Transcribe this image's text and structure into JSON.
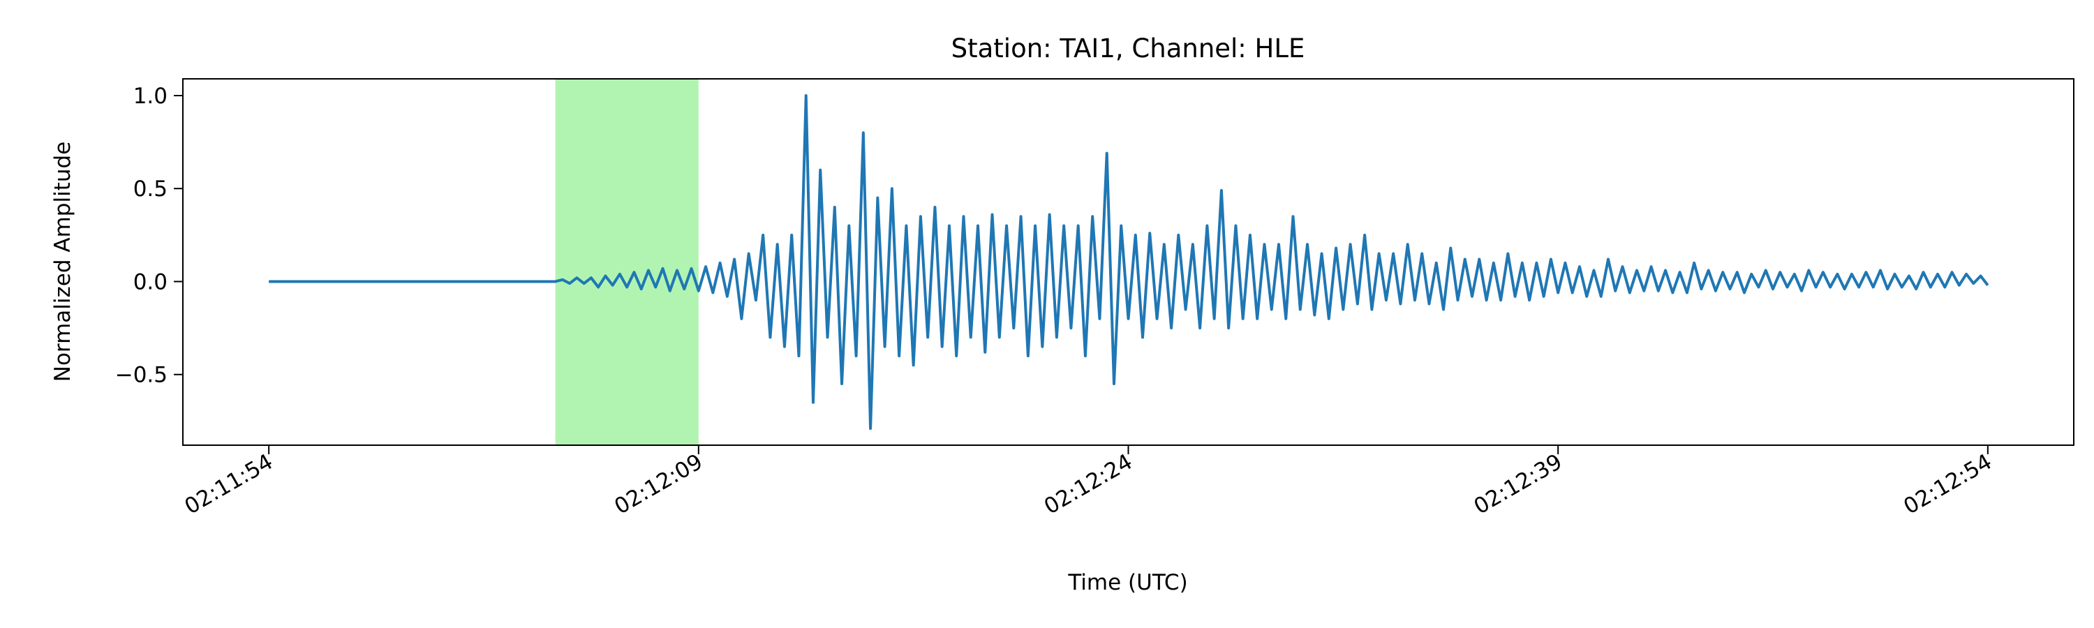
{
  "chart_data": {
    "type": "line",
    "title": "Station: TAI1, Channel: HLE",
    "xlabel": "Time (UTC)",
    "ylabel": "Normalized Amplitude",
    "xlim": [
      7911,
      7977
    ],
    "ylim": [
      -0.88,
      1.09
    ],
    "xticks": [
      {
        "value": 7914,
        "label": "02:11:54"
      },
      {
        "value": 7929,
        "label": "02:12:09"
      },
      {
        "value": 7944,
        "label": "02:12:24"
      },
      {
        "value": 7959,
        "label": "02:12:39"
      },
      {
        "value": 7974,
        "label": "02:12:54"
      }
    ],
    "yticks": [
      {
        "value": -0.5,
        "label": "−0.5"
      },
      {
        "value": 0,
        "label": "0.0"
      },
      0.5,
      {
        "value": 1,
        "label": "1.0"
      }
    ],
    "span": [
      7924,
      7929
    ],
    "span_color": "#b1f4b1",
    "x": [
      7914,
      7924,
      7924.25,
      7924.5,
      7924.75,
      7925,
      7925.25,
      7925.5,
      7925.75,
      7926,
      7926.25,
      7926.5,
      7926.75,
      7927,
      7927.25,
      7927.5,
      7927.75,
      7928,
      7928.25,
      7928.5,
      7928.75,
      7929,
      7929.25,
      7929.5,
      7929.75,
      7930,
      7930.25,
      7930.5,
      7930.75,
      7931,
      7931.25,
      7931.5,
      7931.75,
      7932,
      7932.25,
      7932.5,
      7932.75,
      7933,
      7933.25,
      7933.5,
      7933.75,
      7934,
      7934.25,
      7934.5,
      7934.75,
      7935,
      7935.25,
      7935.5,
      7935.75,
      7936,
      7936.25,
      7936.5,
      7936.75,
      7937,
      7937.25,
      7937.5,
      7937.75,
      7938,
      7938.25,
      7938.5,
      7938.75,
      7939,
      7939.25,
      7939.5,
      7939.75,
      7940,
      7940.25,
      7940.5,
      7940.75,
      7941,
      7941.25,
      7941.5,
      7941.75,
      7942,
      7942.25,
      7942.5,
      7942.75,
      7943,
      7943.25,
      7943.5,
      7943.75,
      7944,
      7944.25,
      7944.5,
      7944.75,
      7945,
      7945.25,
      7945.5,
      7945.75,
      7946,
      7946.25,
      7946.5,
      7946.75,
      7947,
      7947.25,
      7947.5,
      7947.75,
      7948,
      7948.25,
      7948.5,
      7948.75,
      7949,
      7949.25,
      7949.5,
      7949.75,
      7950,
      7950.25,
      7950.5,
      7950.75,
      7951,
      7951.25,
      7951.5,
      7951.75,
      7952,
      7952.25,
      7952.5,
      7952.75,
      7953,
      7953.25,
      7953.5,
      7953.75,
      7954,
      7954.25,
      7954.5,
      7954.75,
      7955,
      7955.25,
      7955.5,
      7955.75,
      7956,
      7956.25,
      7956.5,
      7956.75,
      7957,
      7957.25,
      7957.5,
      7957.75,
      7958,
      7958.25,
      7958.5,
      7958.75,
      7959,
      7959.25,
      7959.5,
      7959.75,
      7960,
      7960.25,
      7960.5,
      7960.75,
      7961,
      7961.25,
      7961.5,
      7961.75,
      7962,
      7962.25,
      7962.5,
      7962.75,
      7963,
      7963.25,
      7963.5,
      7963.75,
      7964,
      7964.25,
      7964.5,
      7964.75,
      7965,
      7965.25,
      7965.5,
      7965.75,
      7966,
      7966.25,
      7966.5,
      7966.75,
      7967,
      7967.25,
      7967.5,
      7967.75,
      7968,
      7968.25,
      7968.5,
      7968.75,
      7969,
      7969.25,
      7969.5,
      7969.75,
      7970,
      7970.25,
      7970.5,
      7970.75,
      7971,
      7971.25,
      7971.5,
      7971.75,
      7972,
      7972.25,
      7972.5,
      7972.75,
      7973,
      7973.25,
      7973.5,
      7973.75,
      7974
    ],
    "series": [
      {
        "color": "#1f77b4",
        "values": [
          0,
          0,
          0.01,
          -0.01,
          0.02,
          -0.01,
          0.02,
          -0.03,
          0.03,
          -0.02,
          0.04,
          -0.03,
          0.05,
          -0.04,
          0.06,
          -0.03,
          0.07,
          -0.05,
          0.06,
          -0.04,
          0.07,
          -0.05,
          0.08,
          -0.06,
          0.1,
          -0.08,
          0.12,
          -0.2,
          0.15,
          -0.1,
          0.25,
          -0.3,
          0.2,
          -0.35,
          0.25,
          -0.4,
          1.0,
          -0.65,
          0.6,
          -0.3,
          0.4,
          -0.55,
          0.3,
          -0.4,
          0.8,
          -0.79,
          0.45,
          -0.35,
          0.5,
          -0.4,
          0.3,
          -0.45,
          0.35,
          -0.3,
          0.4,
          -0.35,
          0.3,
          -0.4,
          0.35,
          -0.3,
          0.3,
          -0.38,
          0.36,
          -0.3,
          0.3,
          -0.25,
          0.35,
          -0.4,
          0.3,
          -0.35,
          0.36,
          -0.3,
          0.3,
          -0.25,
          0.3,
          -0.4,
          0.35,
          -0.2,
          0.69,
          -0.55,
          0.3,
          -0.2,
          0.25,
          -0.3,
          0.26,
          -0.2,
          0.2,
          -0.25,
          0.25,
          -0.15,
          0.2,
          -0.25,
          0.3,
          -0.2,
          0.49,
          -0.25,
          0.3,
          -0.2,
          0.25,
          -0.2,
          0.2,
          -0.15,
          0.2,
          -0.2,
          0.35,
          -0.15,
          0.2,
          -0.18,
          0.15,
          -0.2,
          0.18,
          -0.15,
          0.2,
          -0.12,
          0.25,
          -0.15,
          0.15,
          -0.1,
          0.15,
          -0.12,
          0.2,
          -0.1,
          0.15,
          -0.12,
          0.1,
          -0.15,
          0.18,
          -0.1,
          0.12,
          -0.08,
          0.12,
          -0.1,
          0.1,
          -0.1,
          0.15,
          -0.08,
          0.1,
          -0.1,
          0.1,
          -0.08,
          0.12,
          -0.06,
          0.1,
          -0.06,
          0.08,
          -0.08,
          0.06,
          -0.08,
          0.12,
          -0.05,
          0.08,
          -0.06,
          0.06,
          -0.05,
          0.08,
          -0.05,
          0.06,
          -0.06,
          0.05,
          -0.06,
          0.1,
          -0.04,
          0.06,
          -0.05,
          0.05,
          -0.04,
          0.05,
          -0.06,
          0.04,
          -0.03,
          0.06,
          -0.04,
          0.05,
          -0.03,
          0.04,
          -0.05,
          0.06,
          -0.03,
          0.05,
          -0.03,
          0.04,
          -0.04,
          0.04,
          -0.03,
          0.05,
          -0.03,
          0.06,
          -0.04,
          0.04,
          -0.03,
          0.03,
          -0.04,
          0.05,
          -0.03,
          0.04,
          -0.03,
          0.05,
          -0.02,
          0.04,
          -0.01,
          0.03,
          -0.02
        ]
      }
    ]
  }
}
